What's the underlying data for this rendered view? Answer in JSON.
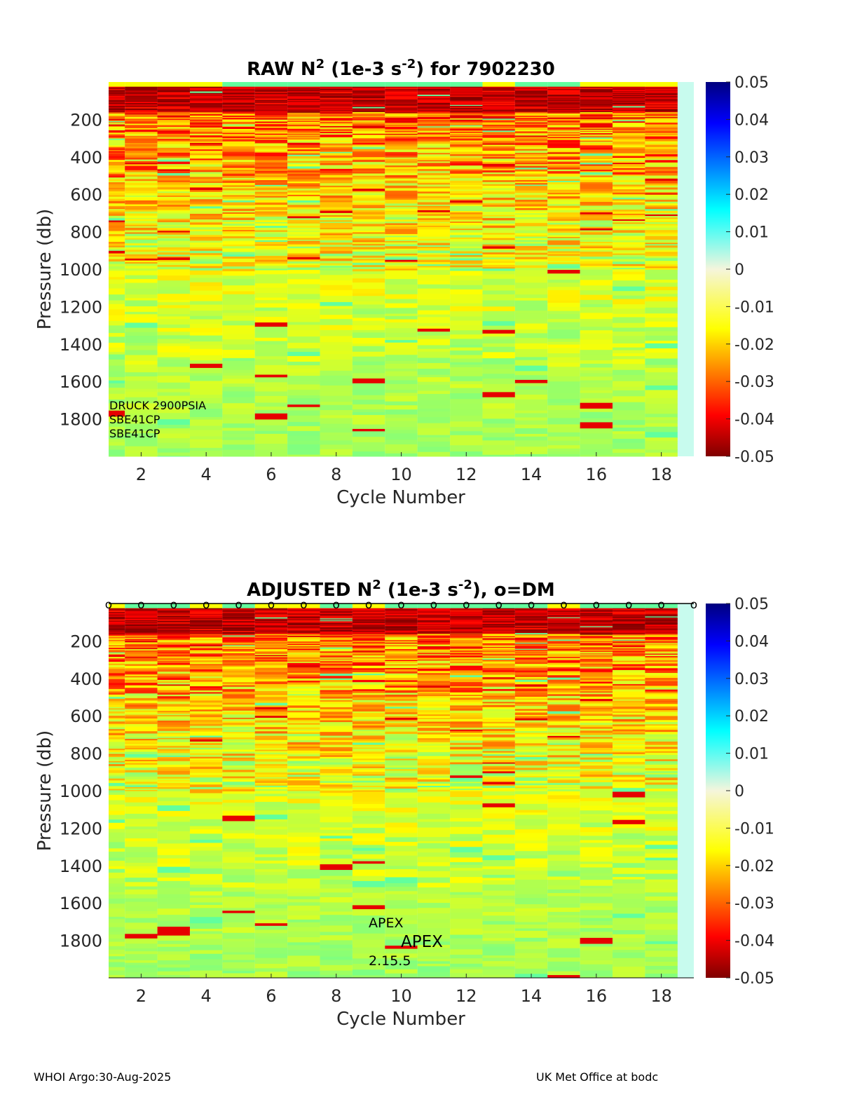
{
  "chart_data": [
    {
      "type": "heatmap",
      "title_prefix": "RAW N",
      "title_sup1": "2",
      "title_mid": " (1e-3 s",
      "title_sup2": "-2",
      "title_suffix": ") for 7902230",
      "xlabel": "Cycle Number",
      "ylabel": "Pressure (db)",
      "x_ticks": [
        "2",
        "4",
        "6",
        "8",
        "10",
        "12",
        "14",
        "16",
        "18"
      ],
      "y_ticks": [
        "200",
        "400",
        "600",
        "800",
        "1000",
        "1200",
        "1400",
        "1600",
        "1800"
      ],
      "xlim": [
        1,
        19
      ],
      "ylim": [
        0,
        2000
      ],
      "cycles": [
        1,
        2,
        3,
        4,
        5,
        6,
        7,
        8,
        9,
        10,
        11,
        12,
        13,
        14,
        15,
        16,
        17,
        18
      ],
      "colorbar": {
        "ticks": [
          "0.05",
          "0.04",
          "0.03",
          "0.02",
          "0.01",
          "0",
          "-0.01",
          "-0.02",
          "-0.03",
          "-0.04",
          "-0.05"
        ],
        "range": [
          -0.05,
          0.05
        ],
        "colormap": "jet"
      },
      "annotations": [
        "DRUCK 2900PSIA",
        "SBE41CP",
        "SBE41CP"
      ],
      "dm_marker": ""
    },
    {
      "type": "heatmap",
      "title_prefix": "ADJUSTED N",
      "title_sup1": "2",
      "title_mid": " (1e-3 s",
      "title_sup2": "-2",
      "title_suffix": "), o=DM",
      "xlabel": "Cycle Number",
      "ylabel": "Pressure (db)",
      "x_ticks": [
        "2",
        "4",
        "6",
        "8",
        "10",
        "12",
        "14",
        "16",
        "18"
      ],
      "y_ticks": [
        "200",
        "400",
        "600",
        "800",
        "1000",
        "1200",
        "1400",
        "1600",
        "1800"
      ],
      "xlim": [
        1,
        19
      ],
      "ylim": [
        0,
        2000
      ],
      "cycles": [
        1,
        2,
        3,
        4,
        5,
        6,
        7,
        8,
        9,
        10,
        11,
        12,
        13,
        14,
        15,
        16,
        17,
        18
      ],
      "colorbar": {
        "ticks": [
          "0.05",
          "0.04",
          "0.03",
          "0.02",
          "0.01",
          "0",
          "-0.01",
          "-0.02",
          "-0.03",
          "-0.04",
          "-0.05"
        ],
        "range": [
          -0.05,
          0.05
        ],
        "colormap": "jet"
      },
      "annotations": [
        "APEX",
        "APEX",
        "2.15.5"
      ],
      "dm_marker": "o"
    }
  ],
  "footer": {
    "left": "WHOI Argo:30-Aug-2025",
    "right": "UK Met Office at bodc"
  }
}
